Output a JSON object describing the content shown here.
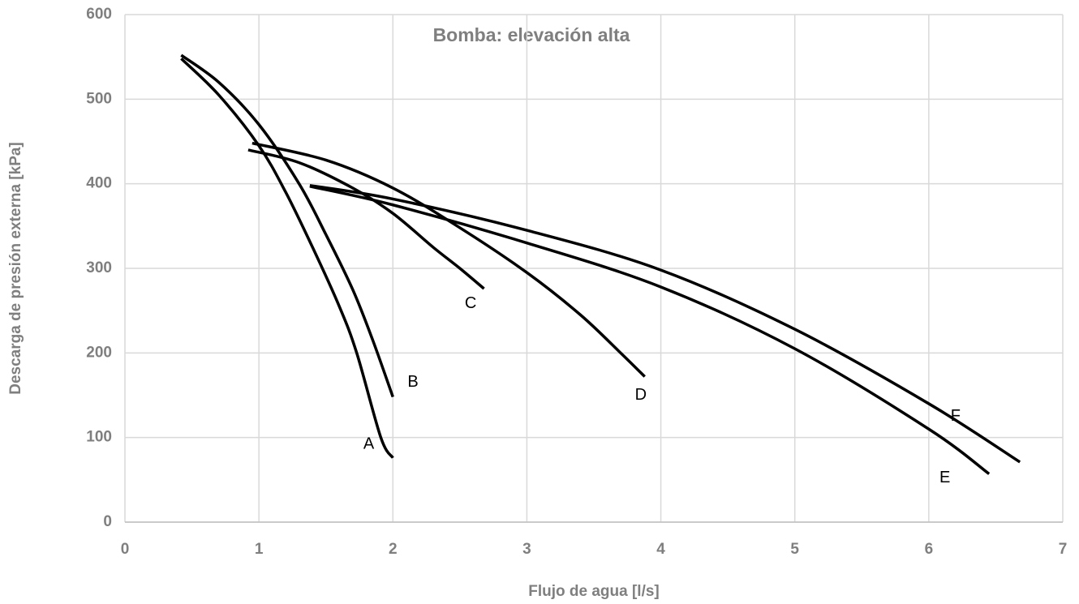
{
  "chart_data": {
    "type": "line",
    "title": "Bomba: elevación alta",
    "xlabel": "Flujo de agua [l/s]",
    "ylabel": "Descarga de presión externa [kPa]",
    "xlim": [
      0,
      7
    ],
    "xticks": [
      0,
      1,
      2,
      3,
      4,
      5,
      6,
      7
    ],
    "ylim": [
      0,
      600
    ],
    "yticks": [
      0,
      100,
      200,
      300,
      400,
      500,
      600
    ],
    "grid": true,
    "series": [
      {
        "name": "A",
        "color": "#000000",
        "x": [
          0.42,
          0.7,
          1.0,
          1.2,
          1.4,
          1.6,
          1.73,
          1.91,
          2.0
        ],
        "values": [
          548,
          505,
          445,
          390,
          325,
          255,
          200,
          100,
          76
        ]
      },
      {
        "name": "B",
        "color": "#000000",
        "x": [
          0.42,
          0.7,
          1.0,
          1.3,
          1.5,
          1.7,
          1.85,
          2.0
        ],
        "values": [
          552,
          520,
          470,
          400,
          340,
          275,
          215,
          148
        ]
      },
      {
        "name": "C",
        "color": "#000000",
        "x": [
          0.92,
          1.3,
          1.7,
          2.0,
          2.3,
          2.5,
          2.68
        ],
        "values": [
          440,
          425,
          395,
          365,
          325,
          300,
          276
        ]
      },
      {
        "name": "D",
        "color": "#000000",
        "x": [
          0.95,
          1.5,
          2.0,
          2.5,
          3.0,
          3.4,
          3.7,
          3.88
        ],
        "values": [
          448,
          428,
          395,
          348,
          295,
          245,
          200,
          172
        ]
      },
      {
        "name": "E",
        "color": "#000000",
        "x": [
          1.38,
          2,
          3,
          4,
          5,
          6,
          6.45
        ],
        "values": [
          397,
          375,
          330,
          278,
          205,
          110,
          57
        ]
      },
      {
        "name": "F",
        "color": "#000000",
        "x": [
          1.38,
          2,
          3,
          4,
          5,
          6,
          6.68
        ],
        "values": [
          398,
          382,
          345,
          298,
          228,
          140,
          71
        ]
      }
    ]
  }
}
